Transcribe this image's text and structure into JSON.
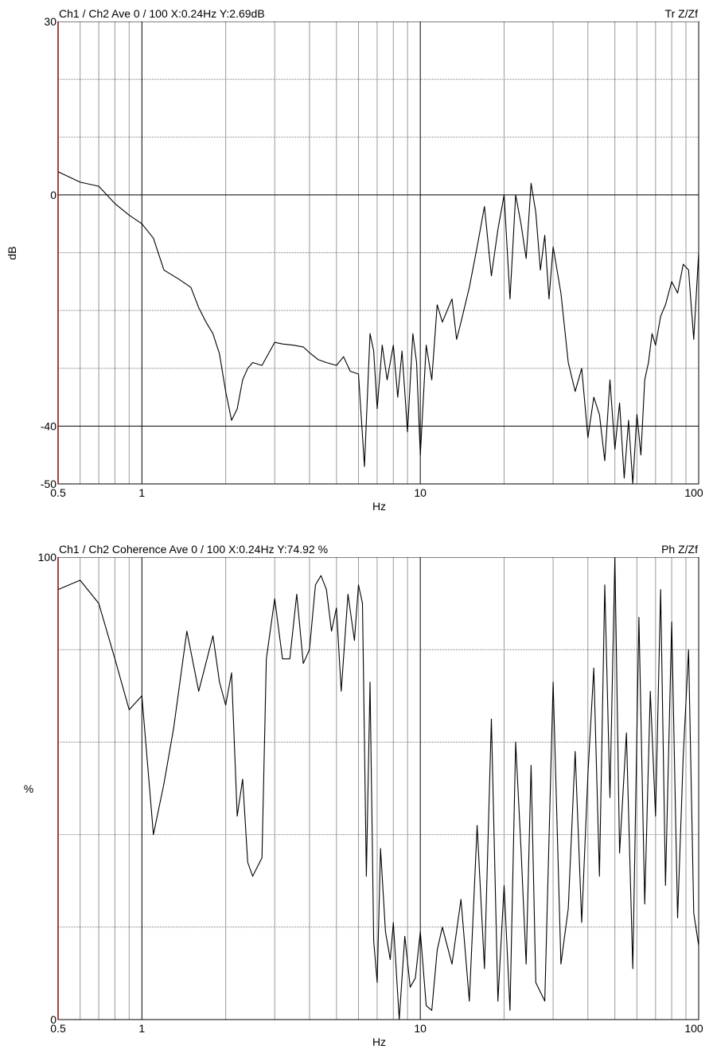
{
  "chart_data": [
    {
      "type": "line",
      "header": {
        "text": "Ch1 / Ch2  Ave 0 / 100  X:0.24Hz  Y:2.69dB",
        "right": "Tr Z/Zf"
      },
      "xscale": "log",
      "xlim": [
        0.5,
        100
      ],
      "ylim": [
        -50,
        30
      ],
      "xlabel": "Hz",
      "ylabel": "dB",
      "xtick_labels": [
        {
          "value": 0.5,
          "label": "0.5"
        },
        {
          "value": 1,
          "label": "1"
        },
        {
          "value": 10,
          "label": "10"
        },
        {
          "value": 100,
          "label": "100"
        }
      ],
      "ytick_labels": [
        {
          "value": 30,
          "label": "30"
        },
        {
          "value": 0,
          "label": "0"
        },
        {
          "value": -40,
          "label": "-40"
        },
        {
          "value": -50,
          "label": "-50"
        }
      ],
      "ygrid_dotted": [
        20,
        10,
        -10,
        -20,
        -30
      ],
      "ygrid_solid": [
        0,
        -40
      ],
      "series": [
        {
          "x": [
            0.5,
            0.6,
            0.7,
            0.8,
            0.9,
            1.0,
            1.1,
            1.2,
            1.35,
            1.5,
            1.6,
            1.7,
            1.8,
            1.9,
            2.0,
            2.1,
            2.2,
            2.3,
            2.4,
            2.5,
            2.7,
            3.0,
            3.2,
            3.5,
            3.8,
            4.0,
            4.3,
            4.6,
            5.0,
            5.3,
            5.6,
            6.0,
            6.3,
            6.6,
            6.8,
            7.0,
            7.3,
            7.6,
            8.0,
            8.3,
            8.6,
            9.0,
            9.4,
            9.7,
            10.0,
            10.5,
            11.0,
            11.5,
            12.0,
            13.0,
            13.5,
            14.0,
            15.0,
            16.0,
            17.0,
            18.0,
            19.0,
            20.0,
            21.0,
            22.0,
            23.0,
            24.0,
            25.0,
            26.0,
            27.0,
            28.0,
            29.0,
            30.0,
            32.0,
            34.0,
            36.0,
            38.0,
            40.0,
            42.0,
            44.0,
            46.0,
            48.0,
            50.0,
            52.0,
            54.0,
            56.0,
            58.0,
            60.0,
            62.0,
            64.0,
            66.0,
            68.0,
            70.0,
            73.0,
            76.0,
            80.0,
            84.0,
            88.0,
            92.0,
            96.0,
            100.0
          ],
          "y": [
            4,
            2.2,
            1.5,
            -1.5,
            -3.5,
            -5,
            -7.5,
            -13,
            -14.5,
            -16,
            -19.5,
            -22,
            -24,
            -27.5,
            -34,
            -39,
            -37,
            -32,
            -30,
            -29,
            -29.5,
            -25.5,
            -25.8,
            -26,
            -26.3,
            -27.3,
            -28.5,
            -29,
            -29.5,
            -28,
            -30.5,
            -31,
            -47,
            -24,
            -27,
            -37,
            -26,
            -32,
            -26,
            -35,
            -27,
            -41,
            -24,
            -29,
            -45,
            -26,
            -32,
            -19,
            -22,
            -18,
            -25,
            -22,
            -16,
            -9,
            -2,
            -14,
            -6,
            0,
            -18,
            0,
            -5,
            -11,
            2,
            -3,
            -13,
            -7,
            -18,
            -9,
            -17,
            -29,
            -34,
            -30,
            -42,
            -35,
            -38,
            -46,
            -32,
            -44,
            -36,
            -49,
            -39,
            -50,
            -38,
            -45,
            -32,
            -29,
            -24,
            -26,
            -21,
            -19,
            -15,
            -17,
            -12,
            -13,
            -25,
            -10
          ]
        }
      ]
    },
    {
      "type": "line",
      "header": {
        "text": "Ch1 / Ch2  Coherence Ave 0 / 100  X:0.24Hz  Y:74.92 %",
        "right": "Ph Z/Zf"
      },
      "xscale": "log",
      "xlim": [
        0.5,
        100
      ],
      "ylim": [
        0,
        100
      ],
      "xlabel": "Hz",
      "ylabel": "%",
      "xtick_labels": [
        {
          "value": 0.5,
          "label": "0.5"
        },
        {
          "value": 1,
          "label": "1"
        },
        {
          "value": 10,
          "label": "10"
        },
        {
          "value": 100,
          "label": "100"
        }
      ],
      "ytick_labels": [
        {
          "value": 100,
          "label": "100"
        },
        {
          "value": 0,
          "label": "0"
        }
      ],
      "ygrid_dotted": [
        80,
        60,
        40,
        20
      ],
      "ygrid_solid": [],
      "series": [
        {
          "x": [
            0.5,
            0.6,
            0.7,
            0.8,
            0.9,
            1.0,
            1.1,
            1.2,
            1.3,
            1.45,
            1.6,
            1.8,
            1.9,
            2.0,
            2.1,
            2.2,
            2.3,
            2.4,
            2.5,
            2.7,
            2.8,
            3.0,
            3.2,
            3.4,
            3.6,
            3.8,
            4.0,
            4.2,
            4.4,
            4.6,
            4.8,
            5.0,
            5.2,
            5.5,
            5.8,
            6.0,
            6.2,
            6.4,
            6.6,
            6.8,
            7.0,
            7.2,
            7.5,
            7.8,
            8.0,
            8.4,
            8.8,
            9.2,
            9.6,
            10.0,
            10.5,
            11.0,
            11.5,
            12.0,
            13.0,
            14.0,
            15.0,
            16.0,
            17.0,
            18.0,
            19.0,
            20.0,
            21.0,
            22.0,
            23.0,
            24.0,
            25.0,
            26.0,
            28.0,
            30.0,
            32.0,
            34.0,
            36.0,
            38.0,
            40.0,
            42.0,
            44.0,
            46.0,
            48.0,
            50.0,
            52.0,
            55.0,
            58.0,
            61.0,
            64.0,
            67.0,
            70.0,
            73.0,
            76.0,
            80.0,
            84.0,
            88.0,
            92.0,
            96.0,
            100.0
          ],
          "y": [
            93,
            95,
            90,
            78,
            67,
            70,
            40,
            51,
            63,
            84,
            71,
            83,
            73,
            68,
            75,
            44,
            52,
            34,
            31,
            35,
            78,
            91,
            78,
            78,
            92,
            77,
            80,
            94,
            96,
            93,
            84,
            89,
            71,
            92,
            82,
            94,
            90,
            31,
            73,
            17,
            8,
            37,
            19,
            13,
            21,
            0,
            18,
            7,
            9,
            19,
            3,
            2,
            15,
            20,
            12,
            26,
            4,
            42,
            11,
            65,
            4,
            29,
            2,
            60,
            37,
            12,
            55,
            8,
            4,
            73,
            12,
            24,
            58,
            21,
            53,
            76,
            31,
            94,
            48,
            100,
            36,
            62,
            11,
            87,
            25,
            71,
            44,
            93,
            29,
            86,
            22,
            57,
            80,
            23,
            16
          ]
        }
      ]
    }
  ]
}
